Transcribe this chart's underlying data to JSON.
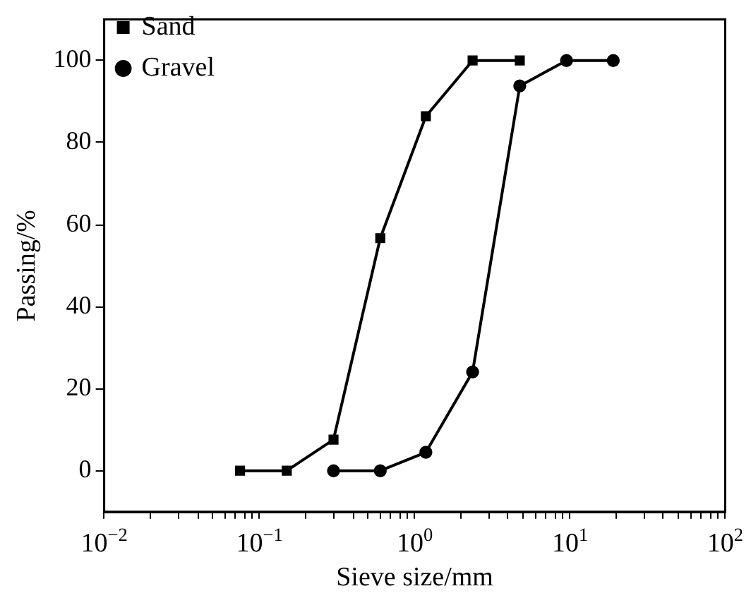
{
  "chart_data": {
    "type": "line",
    "xlabel": "Sieve size/mm",
    "ylabel": "Passing/%",
    "log": "x",
    "grid": false,
    "legend": "top left",
    "line_style": "solid",
    "xlim": [
      0.01,
      100
    ],
    "ylim": [
      -10,
      110
    ],
    "yticks": [
      0,
      20,
      40,
      60,
      80,
      100
    ],
    "xticks": [
      {
        "value": 0.01,
        "label": "10$^{−2}$"
      },
      {
        "value": 0.02,
        "label": null
      },
      {
        "value": 0.03,
        "label": null
      },
      {
        "value": 0.04,
        "label": null
      },
      {
        "value": 0.05,
        "label": null
      },
      {
        "value": 0.06,
        "label": null
      },
      {
        "value": 0.07,
        "label": null
      },
      {
        "value": 0.08,
        "label": null
      },
      {
        "value": 0.09,
        "label": null
      },
      {
        "value": 0.1,
        "label": "10$^{−1}$"
      },
      {
        "value": 0.2,
        "label": null
      },
      {
        "value": 0.3,
        "label": null
      },
      {
        "value": 0.4,
        "label": null
      },
      {
        "value": 0.5,
        "label": null
      },
      {
        "value": 0.6,
        "label": null
      },
      {
        "value": 0.7,
        "label": null
      },
      {
        "value": 0.8,
        "label": null
      },
      {
        "value": 0.9,
        "label": null
      },
      {
        "value": 1,
        "label": "10$^{0}$"
      },
      {
        "value": 2,
        "label": null
      },
      {
        "value": 3,
        "label": null
      },
      {
        "value": 4,
        "label": null
      },
      {
        "value": 5,
        "label": null
      },
      {
        "value": 6,
        "label": null
      },
      {
        "value": 7,
        "label": null
      },
      {
        "value": 8,
        "label": null
      },
      {
        "value": 9,
        "label": null
      },
      {
        "value": 10,
        "label": "10$^{1}$"
      },
      {
        "value": 20,
        "label": null
      },
      {
        "value": 30,
        "label": null
      },
      {
        "value": 40,
        "label": null
      },
      {
        "value": 50,
        "label": null
      },
      {
        "value": 60,
        "label": null
      },
      {
        "value": 70,
        "label": null
      },
      {
        "value": 80,
        "label": null
      },
      {
        "value": 90,
        "label": null
      },
      {
        "value": 100,
        "label": "10$^{2}$"
      }
    ],
    "series": [
      {
        "name": "Sand",
        "color": "#000000",
        "marker": "square",
        "x": [
          0.075,
          0.15,
          0.3,
          0.6,
          1.18,
          2.36,
          4.75
        ],
        "values": [
          0,
          0,
          7.6,
          56.7,
          86.4,
          100,
          100
        ]
      },
      {
        "name": "Gravel",
        "color": "#000000",
        "marker": "circle",
        "x": [
          0.3,
          0.6,
          1.18,
          2.36,
          4.75,
          9.5,
          19
        ],
        "values": [
          0,
          0,
          4.5,
          24.1,
          93.8,
          100,
          100
        ]
      }
    ]
  }
}
